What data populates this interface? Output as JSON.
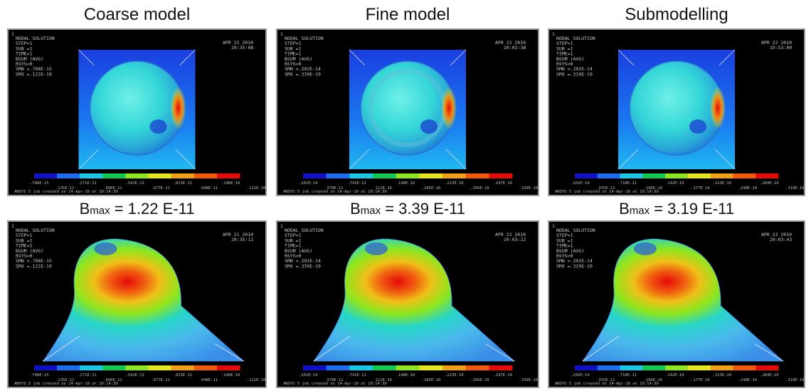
{
  "columns": [
    {
      "title": "Coarse model",
      "bmax": {
        "prefix": "B",
        "sub": "max",
        "value": " = 1.22 E-11"
      },
      "top": {
        "header": [
          "NODAL SOLUTION",
          "STEP=1",
          "SUB =1",
          "TIME=1",
          "BSUM      (AVG)",
          "RSYS=0",
          "SMN =.708E-15",
          "SMX =.122E-10"
        ],
        "date": "APR 22 2010",
        "time": "20:35:08",
        "legend_top": [
          ".708E-15",
          ".271E-11",
          ".542E-11",
          ".813E-11",
          ".108E-10"
        ],
        "legend_bottom": [
          ".135E-11",
          ".406E-11",
          ".677E-11",
          ".948E-11",
          ".122E-10"
        ],
        "footer": "ANSYS 5 job created on 14-Apr-10 at 19:14:39"
      },
      "bottom": {
        "header": [
          "NODAL SOLUTION",
          "STEP=1",
          "SUB =1",
          "TIME=1",
          "BSUM      (AVG)",
          "RSYS=0",
          "SMN =.708E-15",
          "SMX =.122E-10"
        ],
        "date": "APR 21 2010",
        "time": "20:35:11",
        "legend_top": [
          ".708E-15",
          ".271E-11",
          ".542E-11",
          ".813E-11",
          ".108E-10"
        ],
        "legend_bottom": [
          ".135E-11",
          ".406E-11",
          ".677E-11",
          ".948E-11",
          ".122E-10"
        ],
        "footer": "ANSYS 5 job created on 14-Apr-10 at 19:14:39"
      }
    },
    {
      "title": "Fine model",
      "bmax": {
        "prefix": "B",
        "sub": "max",
        "value": " = 3.39 E-11"
      },
      "top": {
        "header": [
          "NODAL SOLUTION",
          "STEP=1",
          "SUB =1",
          "TIME=1",
          "BSUM      (AVG)",
          "RSYS=0",
          "SMN =.202E-14",
          "SMX =.339E-10"
        ],
        "date": "APR 22 2010",
        "time": "20:02:38",
        "legend_top": [
          ".202E-14",
          ".741E-11",
          ".148E-10",
          ".223E-10",
          ".297E-10"
        ],
        "legend_bottom": [
          ".370E-11",
          ".111E-10",
          ".185E-10",
          ".260E-10",
          ".339E-10"
        ],
        "footer": "ANSYS 5 job created on 14-Apr-10 at 19:14:39"
      },
      "bottom": {
        "header": [
          "NODAL SOLUTION",
          "STEP=1",
          "SUB =1",
          "TIME=1",
          "BSUM      (AVG)",
          "RSYS=0",
          "SMN =.202E-14",
          "SMX =.339E-10"
        ],
        "date": "APR 22 2010",
        "time": "20:03:22",
        "legend_top": [
          ".202E-14",
          ".741E-11",
          ".148E-10",
          ".223E-10",
          ".297E-10"
        ],
        "legend_bottom": [
          ".370E-11",
          ".111E-10",
          ".185E-10",
          ".260E-10",
          ".339E-10"
        ],
        "footer": "ANSYS 5 job created on 14-Apr-10 at 19:14:39"
      }
    },
    {
      "title": "Submodelling",
      "bmax": {
        "prefix": "B",
        "sub": "max",
        "value": " = 3.19 E-11"
      },
      "top": {
        "header": [
          "NODAL SOLUTION",
          "STEP=1",
          "SUB =1",
          "TIME=1",
          "BSUM      (AVG)",
          "RSYS=0",
          "SMN =.202E-14",
          "SMX =.319E-10"
        ],
        "date": "APR 22 2010",
        "time": "19:53:00",
        "legend_top": [
          ".202E-14",
          ".710E-11",
          ".142E-10",
          ".213E-10",
          ".284E-10"
        ],
        "legend_bottom": [
          ".355E-11",
          ".106E-10",
          ".177E-10",
          ".248E-10",
          ".319E-10"
        ],
        "footer": "ANSYS 5 job created on 14-Apr-10 at 19:14:39"
      },
      "bottom": {
        "header": [
          "NODAL SOLUTION",
          "STEP=1",
          "SUB =1",
          "TIME=1",
          "BSUM      (AVG)",
          "RSYS=0",
          "SMN =.202E-14",
          "SMX =.319E-10"
        ],
        "date": "APR 22 2010",
        "time": "20:03:43",
        "legend_top": [
          ".202E-14",
          ".710E-11",
          ".142E-10",
          ".213E-10",
          ".284E-10"
        ],
        "legend_bottom": [
          ".355E-11",
          ".106E-10",
          ".177E-10",
          ".248E-10",
          ".319E-10"
        ],
        "footer": "ANSYS 5 job created on 14-Apr-10 at 19:14:39"
      }
    }
  ],
  "colors": {
    "legend": [
      "#1010c8",
      "#1e6cf0",
      "#19c8e6",
      "#12c850",
      "#8ee61e",
      "#e6e61e",
      "#f0a014",
      "#f05a0a",
      "#e60a0a"
    ]
  }
}
